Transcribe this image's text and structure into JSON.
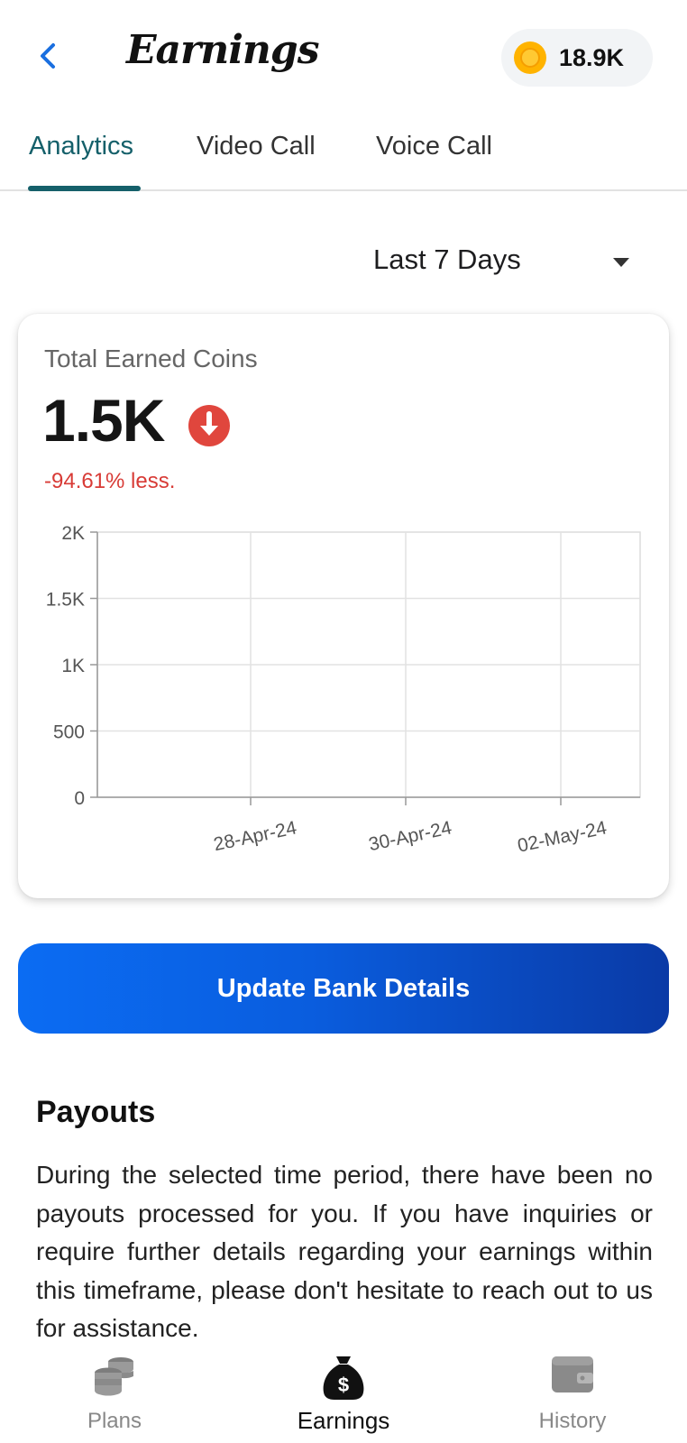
{
  "header": {
    "title": "Earnings",
    "coin_balance": "18.9K",
    "back_icon": "chevron-left-icon",
    "coin_icon": "coin-icon",
    "accent_color": "#1a6fe0"
  },
  "tabs": [
    {
      "label": "Analytics",
      "active": true
    },
    {
      "label": "Video Call",
      "active": false
    },
    {
      "label": "Voice Call",
      "active": false
    }
  ],
  "range_select": {
    "value": "Last 7 Days"
  },
  "summary": {
    "label": "Total Earned Coins",
    "value": "1.5K",
    "trend_icon": "arrow-down-circle-icon",
    "change_text": "-94.61% less.",
    "change_color": "#d83b36"
  },
  "chart_data": {
    "type": "line",
    "title": "",
    "xlabel": "",
    "ylabel": "",
    "y_ticks": [
      "0",
      "500",
      "1K",
      "1.5K",
      "2K"
    ],
    "ylim": [
      0,
      2000
    ],
    "x_ticks": [
      "28-Apr-24",
      "30-Apr-24",
      "02-May-24"
    ],
    "series": [],
    "grid": true
  },
  "actions": {
    "update_bank": "Update Bank Details"
  },
  "payouts": {
    "title": "Payouts",
    "body": "During the selected time period, there have been no payouts processed for you. If you have inquiries or require further details regarding your earnings within this timeframe, please don't hesitate to reach out to us for assistance."
  },
  "bottom_nav": [
    {
      "label": "Plans",
      "icon": "coins-stack-icon",
      "active": false
    },
    {
      "label": "Earnings",
      "icon": "money-bag-icon",
      "active": true
    },
    {
      "label": "History",
      "icon": "wallet-icon",
      "active": false
    }
  ]
}
